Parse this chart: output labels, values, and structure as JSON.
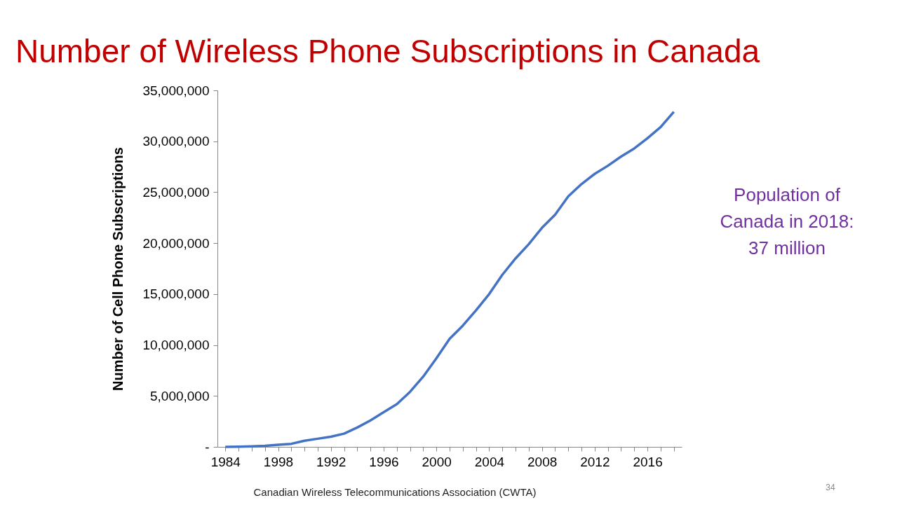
{
  "chart_data": {
    "type": "line",
    "title": "Number of Wireless Phone Subscriptions in Canada",
    "ylabel": "Number of Cell Phone Subscriptions",
    "categories": [
      "1984",
      null,
      null,
      null,
      "1998",
      null,
      null,
      null,
      "1992",
      null,
      null,
      null,
      "1996",
      null,
      null,
      null,
      "2000",
      null,
      null,
      null,
      "2004",
      null,
      null,
      null,
      "2008",
      null,
      null,
      null,
      "2012",
      null,
      null,
      null,
      "2016",
      null,
      null
    ],
    "series": [
      {
        "color": "#4472c4",
        "values": [
          0,
          20000,
          50000,
          100000,
          200000,
          300000,
          600000,
          800000,
          1000000,
          1300000,
          1900000,
          2600000,
          3400000,
          4200000,
          5400000,
          6900000,
          8700000,
          10600000,
          11900000,
          13400000,
          15000000,
          16900000,
          18500000,
          19900000,
          21500000,
          22800000,
          24600000,
          25800000,
          26800000,
          27600000,
          28500000,
          29300000,
          30300000,
          31400000,
          32900000
        ]
      }
    ],
    "ylim": [
      0,
      35000000
    ],
    "yticks": [
      {
        "value": 0,
        "label": "-"
      },
      {
        "value": 5000000,
        "label": "5,000,000"
      },
      {
        "value": 10000000,
        "label": "10,000,000"
      },
      {
        "value": 15000000,
        "label": "15,000,000"
      },
      {
        "value": 20000000,
        "label": "20,000,000"
      },
      {
        "value": 25000000,
        "label": "25,000,000"
      },
      {
        "value": 30000000,
        "label": "30,000,000"
      },
      {
        "value": 35000000,
        "label": "35,000,000"
      }
    ],
    "grid": false,
    "legend": false,
    "marker": "none",
    "line_style": "solid",
    "annotations": [
      "Population of Canada in 2018: 37 million",
      "Canadian Wireless Telecommunications Association (CWTA)",
      "34"
    ]
  }
}
